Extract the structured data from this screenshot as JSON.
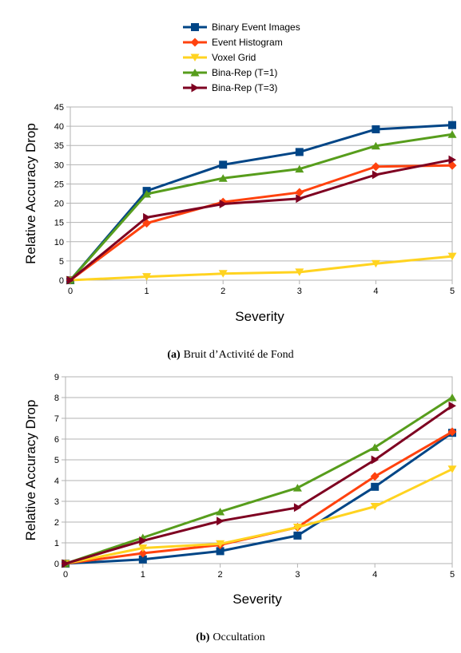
{
  "legend": [
    {
      "name": "Binary Event Images",
      "color": "#004586",
      "marker": "square"
    },
    {
      "name": "Event Histogram",
      "color": "#ff420e",
      "marker": "diamond"
    },
    {
      "name": "Voxel Grid",
      "color": "#ffd320",
      "marker": "triangle-down"
    },
    {
      "name": "Bina-Rep (T=1)",
      "color": "#579d1c",
      "marker": "triangle-up"
    },
    {
      "name": "Bina-Rep (T=3)",
      "color": "#7e0021",
      "marker": "triangle-right"
    }
  ],
  "chart_data": [
    {
      "type": "line",
      "caption_label": "(a)",
      "caption_text": "Bruit d’Activité de Fond",
      "xlabel": "Severity",
      "ylabel": "Relative Accuracy Drop",
      "x": [
        0,
        1,
        2,
        3,
        4,
        5
      ],
      "xlim": [
        0,
        5
      ],
      "ylim": [
        0,
        45
      ],
      "yticks": [
        0,
        5,
        10,
        15,
        20,
        25,
        30,
        35,
        40,
        45
      ],
      "grid": "horizontal",
      "series": [
        {
          "name": "Binary Event Images",
          "values": [
            0,
            23.2,
            30.0,
            33.3,
            39.2,
            40.3
          ]
        },
        {
          "name": "Event Histogram",
          "values": [
            0,
            14.8,
            20.3,
            22.8,
            29.5,
            29.8
          ]
        },
        {
          "name": "Voxel Grid",
          "values": [
            0,
            0.9,
            1.7,
            2.1,
            4.3,
            6.2
          ]
        },
        {
          "name": "Bina-Rep (T=1)",
          "values": [
            0,
            22.4,
            26.5,
            28.9,
            34.9,
            37.9
          ]
        },
        {
          "name": "Bina-Rep (T=3)",
          "values": [
            0,
            16.3,
            19.8,
            21.2,
            27.4,
            31.3
          ]
        }
      ]
    },
    {
      "type": "line",
      "caption_label": "(b)",
      "caption_text": "Occultation",
      "xlabel": "Severity",
      "ylabel": "Relative Accuracy Drop",
      "x": [
        0,
        1,
        2,
        3,
        4,
        5
      ],
      "xlim": [
        0,
        5
      ],
      "ylim": [
        0,
        9
      ],
      "yticks": [
        0,
        1,
        2,
        3,
        4,
        5,
        6,
        7,
        8,
        9
      ],
      "grid": "horizontal",
      "series": [
        {
          "name": "Binary Event Images",
          "values": [
            0,
            0.2,
            0.6,
            1.35,
            3.7,
            6.3
          ]
        },
        {
          "name": "Event Histogram",
          "values": [
            0,
            0.5,
            0.9,
            1.75,
            4.2,
            6.35
          ]
        },
        {
          "name": "Voxel Grid",
          "values": [
            0,
            0.75,
            0.95,
            1.75,
            2.75,
            4.55
          ]
        },
        {
          "name": "Bina-Rep (T=1)",
          "values": [
            0,
            1.25,
            2.5,
            3.65,
            5.6,
            8.0
          ]
        },
        {
          "name": "Bina-Rep (T=3)",
          "values": [
            0,
            1.1,
            2.05,
            2.7,
            5.0,
            7.6
          ]
        }
      ]
    }
  ]
}
